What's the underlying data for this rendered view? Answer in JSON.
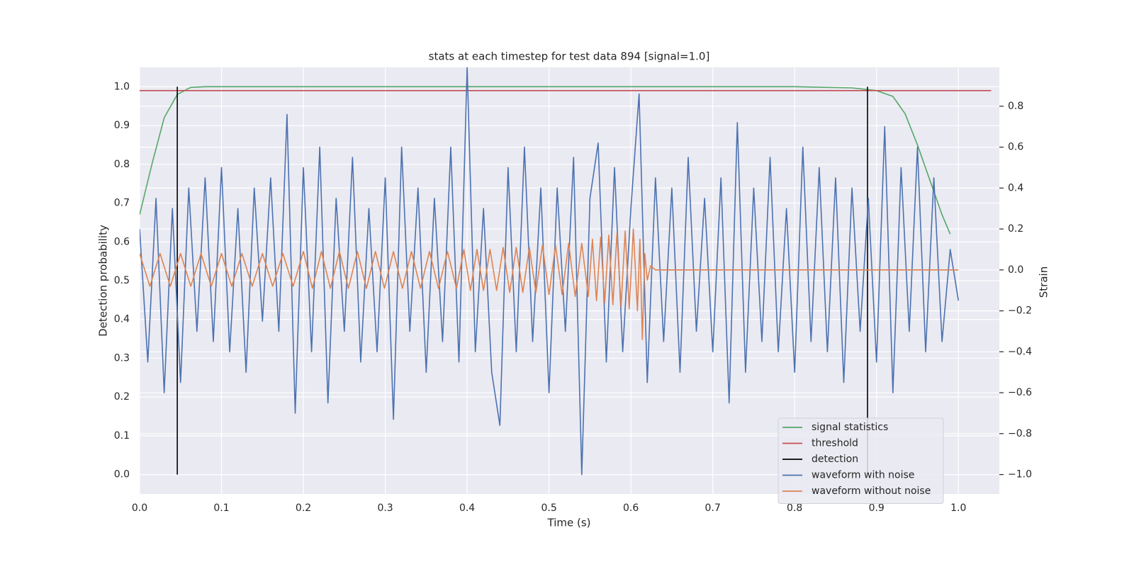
{
  "chart_data": {
    "type": "line",
    "title": "stats at each timestep for test data 894 [signal=1.0]",
    "xlabel": "Time (s)",
    "ylabel": "Detection probability",
    "y2label": "Strain",
    "xlim": [
      0,
      1.05
    ],
    "ylim": [
      -0.05,
      1.05
    ],
    "y2lim": [
      -1.095,
      0.99
    ],
    "xticks": [
      {
        "value": 0,
        "label": "0.0"
      },
      0.1,
      0.2,
      0.3,
      0.4,
      0.5,
      0.6,
      0.7,
      0.8,
      0.9,
      {
        "value": 1,
        "label": "1.0"
      }
    ],
    "yticks": [
      {
        "value": 0,
        "label": "0.0"
      },
      0.1,
      0.2,
      0.3,
      0.4,
      0.5,
      0.6,
      0.7,
      0.8,
      0.9,
      {
        "value": 1,
        "label": "1.0"
      }
    ],
    "y2ticks": [
      {
        "value": -1,
        "label": "−1.0"
      },
      {
        "value": -0.8,
        "label": "−0.8"
      },
      {
        "value": -0.6,
        "label": "−0.6"
      },
      {
        "value": -0.4,
        "label": "−0.4"
      },
      {
        "value": -0.2,
        "label": "−0.2"
      },
      {
        "value": 0,
        "label": "0.0"
      },
      0.2,
      0.4,
      0.6,
      0.8
    ],
    "grid": true,
    "legend": "lower right",
    "series": [
      {
        "name": "signal statistics",
        "color": "#55a868",
        "kind": "line",
        "x": [
          0,
          0.015,
          0.03,
          0.046,
          0.062,
          0.08,
          0.2,
          0.8,
          0.87,
          0.9,
          0.92,
          0.935,
          0.95,
          0.965,
          0.98,
          0.99
        ],
        "values": [
          0.67,
          0.8,
          0.92,
          0.98,
          0.998,
          1.0,
          1.0,
          1.0,
          0.997,
          0.99,
          0.975,
          0.93,
          0.85,
          0.76,
          0.67,
          0.62
        ]
      },
      {
        "name": "threshold",
        "color": "#c44e52",
        "kind": "line",
        "x": [
          0,
          1.04
        ],
        "values": [
          0.99,
          0.99
        ]
      },
      {
        "name": "detection",
        "color": "#000000",
        "kind": "vline",
        "x": [
          0.046,
          0.889
        ],
        "values": [
          1.0,
          1.0
        ]
      },
      {
        "name": "waveform with noise",
        "color": "#4c72b0",
        "kind": "line",
        "axis": "y2",
        "x": [
          0,
          0.01,
          0.02,
          0.03,
          0.04,
          0.05,
          0.06,
          0.07,
          0.08,
          0.09,
          0.1,
          0.11,
          0.12,
          0.13,
          0.14,
          0.15,
          0.16,
          0.17,
          0.18,
          0.19,
          0.2,
          0.21,
          0.22,
          0.23,
          0.24,
          0.25,
          0.26,
          0.27,
          0.28,
          0.29,
          0.3,
          0.31,
          0.32,
          0.33,
          0.34,
          0.35,
          0.36,
          0.37,
          0.38,
          0.39,
          0.4,
          0.41,
          0.42,
          0.43,
          0.44,
          0.45,
          0.46,
          0.47,
          0.48,
          0.49,
          0.5,
          0.51,
          0.52,
          0.53,
          0.54,
          0.55,
          0.56,
          0.57,
          0.58,
          0.59,
          0.6,
          0.61,
          0.62,
          0.63,
          0.64,
          0.65,
          0.66,
          0.67,
          0.68,
          0.69,
          0.7,
          0.71,
          0.72,
          0.73,
          0.74,
          0.75,
          0.76,
          0.77,
          0.78,
          0.79,
          0.8,
          0.81,
          0.82,
          0.83,
          0.84,
          0.85,
          0.86,
          0.87,
          0.88,
          0.89,
          0.9,
          0.91,
          0.92,
          0.93,
          0.94,
          0.95,
          0.96,
          0.97,
          0.98,
          0.99,
          1.0
        ],
        "values": [
          0.2,
          -0.45,
          0.35,
          -0.6,
          0.3,
          -0.55,
          0.4,
          -0.3,
          0.45,
          -0.35,
          0.5,
          -0.4,
          0.3,
          -0.5,
          0.4,
          -0.25,
          0.45,
          -0.3,
          0.76,
          -0.7,
          0.5,
          -0.4,
          0.6,
          -0.65,
          0.35,
          -0.3,
          0.55,
          -0.45,
          0.3,
          -0.4,
          0.45,
          -0.73,
          0.6,
          -0.3,
          0.4,
          -0.5,
          0.35,
          -0.35,
          0.6,
          -0.45,
          0.99,
          -0.4,
          0.3,
          -0.5,
          -0.76,
          0.5,
          -0.4,
          0.6,
          -0.35,
          0.4,
          -0.6,
          0.4,
          -0.3,
          0.55,
          -1.0,
          0.35,
          0.62,
          -0.45,
          0.5,
          -0.4,
          0.3,
          0.86,
          -0.55,
          0.45,
          -0.35,
          0.4,
          -0.5,
          0.55,
          -0.3,
          0.35,
          -0.4,
          0.45,
          -0.65,
          0.72,
          -0.5,
          0.4,
          -0.35,
          0.55,
          -0.4,
          0.3,
          -0.5,
          0.6,
          -0.35,
          0.5,
          -0.4,
          0.45,
          -0.55,
          0.4,
          -0.3,
          0.35,
          -0.45,
          0.7,
          -0.6,
          0.5,
          -0.3,
          0.6,
          -0.4,
          0.45,
          -0.35,
          0.1,
          -0.15
        ]
      },
      {
        "name": "waveform without noise",
        "color": "#dd8452",
        "kind": "line",
        "axis": "y2",
        "x": [
          0,
          0.0125,
          0.025,
          0.0375,
          0.05,
          0.0625,
          0.075,
          0.0875,
          0.1,
          0.1125,
          0.125,
          0.1375,
          0.15,
          0.1625,
          0.175,
          0.1875,
          0.2,
          0.211,
          0.222,
          0.233,
          0.244,
          0.255,
          0.266,
          0.277,
          0.288,
          0.299,
          0.31,
          0.321,
          0.332,
          0.343,
          0.354,
          0.365,
          0.376,
          0.387,
          0.396,
          0.404,
          0.412,
          0.42,
          0.428,
          0.436,
          0.444,
          0.452,
          0.46,
          0.468,
          0.476,
          0.484,
          0.492,
          0.5,
          0.508,
          0.516,
          0.524,
          0.532,
          0.54,
          0.548,
          0.553,
          0.558,
          0.563,
          0.568,
          0.573,
          0.578,
          0.583,
          0.588,
          0.593,
          0.598,
          0.603,
          0.608,
          0.611,
          0.614,
          0.617,
          0.62,
          0.624,
          0.63,
          1.0
        ],
        "values": [
          0.08,
          -0.08,
          0.08,
          -0.08,
          0.08,
          -0.08,
          0.08,
          -0.08,
          0.08,
          -0.08,
          0.08,
          -0.08,
          0.08,
          -0.08,
          0.08,
          -0.08,
          0.09,
          -0.09,
          0.09,
          -0.09,
          0.09,
          -0.09,
          0.09,
          -0.09,
          0.09,
          -0.09,
          0.09,
          -0.09,
          0.09,
          -0.09,
          0.09,
          -0.09,
          0.09,
          -0.09,
          0.1,
          -0.1,
          0.1,
          -0.1,
          0.1,
          -0.1,
          0.11,
          -0.11,
          0.11,
          -0.11,
          0.11,
          -0.11,
          0.12,
          -0.12,
          0.12,
          -0.12,
          0.13,
          -0.13,
          0.13,
          -0.13,
          0.15,
          -0.15,
          0.16,
          -0.16,
          0.17,
          -0.17,
          0.18,
          -0.18,
          0.19,
          -0.19,
          0.2,
          -0.2,
          0.15,
          -0.34,
          0.08,
          -0.05,
          0.02,
          0,
          0
        ]
      }
    ]
  }
}
